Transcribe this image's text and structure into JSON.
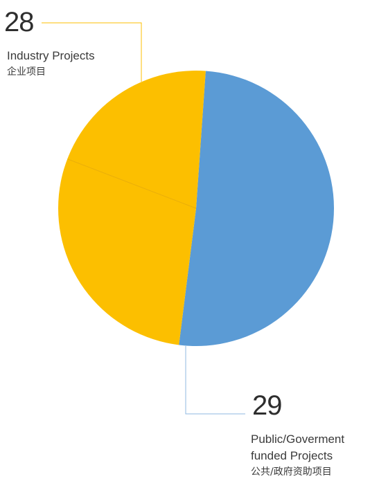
{
  "chart_data": {
    "type": "pie",
    "slices": [
      {
        "value": 29,
        "label_en_lines": [
          "Public/Goverment",
          "funded Projects"
        ],
        "label_zh": "公共/政府资助项目",
        "color": "#5b9bd5"
      },
      {
        "value": 28,
        "label_en_lines": [
          "Industry Projects"
        ],
        "label_zh": "企业项目",
        "color": "#fcbf00"
      }
    ],
    "legend": "none",
    "slice_divider_color": "#e9ae0a",
    "leader_line_colors": {
      "industry": "#fcbf00",
      "public": "#8fb8e0"
    }
  },
  "annotations": {
    "industry": {
      "number": "28",
      "label_en": "Industry Projects",
      "label_zh": "企业项目"
    },
    "public": {
      "number": "29",
      "label_en_line1": "Public/Goverment",
      "label_en_line2": "funded Projects",
      "label_zh": "公共/政府资助项目"
    }
  }
}
